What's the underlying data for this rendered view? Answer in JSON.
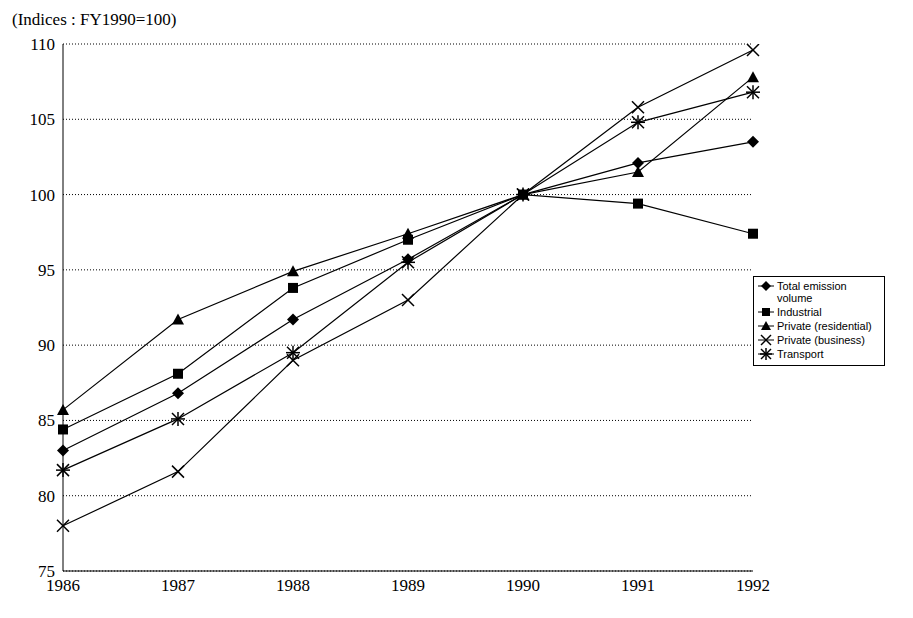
{
  "chart_data": {
    "type": "line",
    "title": "(Indices : FY1990=100)",
    "categories": [
      "1986",
      "1987",
      "1988",
      "1989",
      "1990",
      "1991",
      "1992"
    ],
    "series": [
      {
        "name": "Total emission volume",
        "color": "#000000",
        "marker": "diamond",
        "values": [
          83,
          86.8,
          91.7,
          95.7,
          100,
          102.1,
          103.5
        ]
      },
      {
        "name": "Industrial",
        "color": "#000000",
        "marker": "square",
        "values": [
          84.4,
          88.1,
          93.8,
          97,
          100,
          99.4,
          97.4
        ]
      },
      {
        "name": "Private (residential)",
        "color": "#000000",
        "marker": "triangle",
        "values": [
          85.7,
          91.7,
          94.9,
          97.4,
          100,
          101.5,
          107.8
        ]
      },
      {
        "name": "Private (business)",
        "color": "#000000",
        "marker": "x",
        "values": [
          78,
          81.6,
          89,
          93,
          100,
          105.8,
          109.6
        ]
      },
      {
        "name": "Transport",
        "color": "#000000",
        "marker": "asterisk",
        "values": [
          81.7,
          85.1,
          89.5,
          95.5,
          100,
          104.8,
          106.8
        ]
      }
    ],
    "ylim": [
      75,
      110
    ],
    "yticks": [
      75,
      80,
      85,
      90,
      95,
      100,
      105,
      110
    ],
    "grid": true,
    "legend": "right"
  }
}
